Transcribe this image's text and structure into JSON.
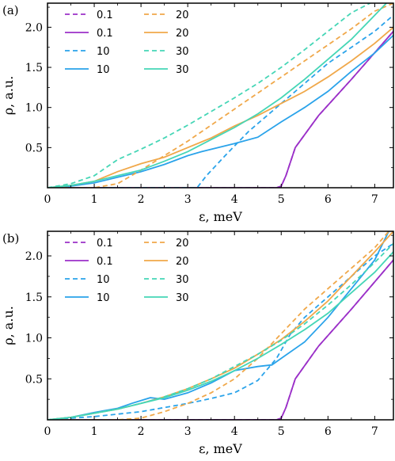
{
  "chart_data": [
    {
      "type": "line",
      "panel_label": "(a)",
      "xlabel": "ε,  meV",
      "ylabel": "ρ, a.u.",
      "xlim": [
        0,
        7.4
      ],
      "ylim": [
        0,
        2.3
      ],
      "xticks": [
        "0",
        "1",
        "2",
        "3",
        "4",
        "5",
        "6",
        "7"
      ],
      "yticks": [
        "0.5",
        "1.0",
        "1.5",
        "2.0"
      ],
      "legend": {
        "position": "top-left",
        "columns": 2
      },
      "series": [
        {
          "name": "0.1",
          "style": "dashed",
          "color": "#9b30c8",
          "x": [
            0,
            4.9,
            5.0,
            5.1,
            5.3,
            5.8,
            6.5,
            7.4
          ],
          "y": [
            0,
            0,
            0.02,
            0.15,
            0.5,
            0.9,
            1.35,
            1.95
          ]
        },
        {
          "name": "0.1",
          "style": "solid",
          "color": "#9b30c8",
          "x": [
            0,
            4.9,
            5.0,
            5.1,
            5.3,
            5.8,
            6.5,
            7.4
          ],
          "y": [
            0,
            0,
            0.02,
            0.15,
            0.5,
            0.9,
            1.35,
            1.95
          ]
        },
        {
          "name": "10",
          "style": "dashed",
          "color": "#2aa3ea",
          "x": [
            0,
            3.2,
            3.4,
            3.8,
            4.3,
            5.0,
            5.5,
            6.0,
            6.5,
            7.0,
            7.4
          ],
          "y": [
            0,
            0,
            0.15,
            0.4,
            0.7,
            1.05,
            1.3,
            1.55,
            1.75,
            1.95,
            2.15
          ]
        },
        {
          "name": "10",
          "style": "solid",
          "color": "#2aa3ea",
          "x": [
            0,
            0.5,
            1,
            1.5,
            2,
            2.5,
            3,
            3.3,
            4,
            4.5,
            5,
            5.5,
            6,
            6.5,
            7,
            7.4
          ],
          "y": [
            0,
            0.02,
            0.06,
            0.13,
            0.2,
            0.29,
            0.4,
            0.45,
            0.55,
            0.63,
            0.82,
            1.0,
            1.2,
            1.45,
            1.68,
            1.9
          ]
        },
        {
          "name": "20",
          "style": "dashed",
          "color": "#f0a84a",
          "x": [
            0,
            1,
            1.5,
            2,
            2.5,
            3,
            3.5,
            4,
            4.5,
            5,
            5.5,
            6,
            6.5,
            7,
            7.4
          ],
          "y": [
            0,
            0,
            0.05,
            0.22,
            0.4,
            0.58,
            0.78,
            0.98,
            1.18,
            1.38,
            1.58,
            1.78,
            1.98,
            2.2,
            2.3
          ]
        },
        {
          "name": "20",
          "style": "solid",
          "color": "#f0a84a",
          "x": [
            0,
            0.5,
            1,
            1.5,
            2,
            2.5,
            3,
            3.5,
            4,
            4.5,
            5,
            5.5,
            6,
            6.5,
            7,
            7.4
          ],
          "y": [
            0,
            0.03,
            0.08,
            0.2,
            0.3,
            0.38,
            0.5,
            0.62,
            0.77,
            0.9,
            1.05,
            1.2,
            1.38,
            1.58,
            1.8,
            2.0
          ]
        },
        {
          "name": "30",
          "style": "dashed",
          "color": "#45d6b6",
          "x": [
            0,
            0.5,
            1,
            1.5,
            2,
            2.5,
            3,
            3.5,
            4,
            4.5,
            5,
            5.5,
            6,
            6.5,
            6.9
          ],
          "y": [
            0,
            0.05,
            0.15,
            0.35,
            0.48,
            0.62,
            0.78,
            0.95,
            1.12,
            1.3,
            1.5,
            1.72,
            1.95,
            2.18,
            2.3
          ]
        },
        {
          "name": "30",
          "style": "solid",
          "color": "#45d6b6",
          "x": [
            0,
            0.5,
            1,
            1.5,
            2,
            2.5,
            3,
            3.5,
            4,
            4.5,
            5,
            5.5,
            6,
            6.5,
            7,
            7.25
          ],
          "y": [
            0,
            0.03,
            0.08,
            0.15,
            0.22,
            0.33,
            0.45,
            0.6,
            0.75,
            0.92,
            1.12,
            1.35,
            1.6,
            1.85,
            2.15,
            2.3
          ]
        }
      ]
    },
    {
      "type": "line",
      "panel_label": "(b)",
      "xlabel": "ε,  meV",
      "ylabel": "ρ, a.u.",
      "xlim": [
        0,
        7.4
      ],
      "ylim": [
        0,
        2.3
      ],
      "xticks": [
        "0",
        "1",
        "2",
        "3",
        "4",
        "5",
        "6",
        "7"
      ],
      "yticks": [
        "0.5",
        "1.0",
        "1.5",
        "2.0"
      ],
      "legend": {
        "position": "top-left",
        "columns": 2
      },
      "series": [
        {
          "name": "0.1",
          "style": "dashed",
          "color": "#9b30c8",
          "x": [
            0,
            4.9,
            5.0,
            5.1,
            5.3,
            5.8,
            6.5,
            7.4
          ],
          "y": [
            0,
            0,
            0.02,
            0.15,
            0.5,
            0.9,
            1.35,
            1.95
          ]
        },
        {
          "name": "0.1",
          "style": "solid",
          "color": "#9b30c8",
          "x": [
            0,
            4.9,
            5.0,
            5.1,
            5.3,
            5.8,
            6.5,
            7.4
          ],
          "y": [
            0,
            0,
            0.02,
            0.15,
            0.5,
            0.9,
            1.35,
            1.95
          ]
        },
        {
          "name": "10",
          "style": "dashed",
          "color": "#2aa3ea",
          "x": [
            0,
            1,
            2,
            3,
            3.5,
            4,
            4.5,
            4.9,
            5.2,
            5.5,
            6,
            6.5,
            7,
            7.4
          ],
          "y": [
            0,
            0.04,
            0.1,
            0.2,
            0.26,
            0.33,
            0.48,
            0.75,
            1.05,
            1.25,
            1.5,
            1.75,
            2.0,
            2.15
          ]
        },
        {
          "name": "10",
          "style": "solid",
          "color": "#2aa3ea",
          "x": [
            0,
            0.5,
            1,
            1.5,
            1.8,
            2.2,
            2.5,
            3,
            3.5,
            4,
            4.5,
            4.8,
            5,
            5.5,
            6,
            6.5,
            7,
            7.3
          ],
          "y": [
            0,
            0.03,
            0.09,
            0.14,
            0.2,
            0.27,
            0.25,
            0.33,
            0.45,
            0.6,
            0.65,
            0.67,
            0.75,
            0.95,
            1.25,
            1.6,
            1.95,
            2.3
          ]
        },
        {
          "name": "20",
          "style": "dashed",
          "color": "#f0a84a",
          "x": [
            0,
            1.5,
            2,
            2.5,
            3,
            3.5,
            4,
            4.5,
            5,
            5.5,
            6,
            6.5,
            7,
            7.3
          ],
          "y": [
            0,
            0,
            0.02,
            0.1,
            0.2,
            0.33,
            0.5,
            0.75,
            1.05,
            1.35,
            1.6,
            1.85,
            2.1,
            2.3
          ]
        },
        {
          "name": "20",
          "style": "solid",
          "color": "#f0a84a",
          "x": [
            0,
            0.5,
            1,
            1.5,
            2,
            2.5,
            3,
            3.5,
            4,
            4.5,
            5,
            5.5,
            6,
            6.5,
            7,
            7.4
          ],
          "y": [
            0,
            0.03,
            0.08,
            0.13,
            0.2,
            0.28,
            0.38,
            0.5,
            0.63,
            0.8,
            0.98,
            1.2,
            1.45,
            1.75,
            2.05,
            2.3
          ]
        },
        {
          "name": "30",
          "style": "dashed",
          "color": "#45d6b6",
          "x": [
            0,
            0.5,
            1,
            1.5,
            2,
            2.5,
            3,
            3.5,
            4,
            4.5,
            5,
            5.5,
            6,
            6.5,
            7,
            7.4
          ],
          "y": [
            0,
            0.03,
            0.08,
            0.13,
            0.2,
            0.28,
            0.38,
            0.5,
            0.65,
            0.8,
            0.97,
            1.17,
            1.4,
            1.65,
            1.92,
            2.15
          ]
        },
        {
          "name": "30",
          "style": "solid",
          "color": "#45d6b6",
          "x": [
            0,
            0.5,
            1,
            1.5,
            2,
            2.5,
            3,
            3.5,
            4,
            4.5,
            5,
            5.5,
            6,
            6.5,
            7,
            7.4
          ],
          "y": [
            0,
            0.03,
            0.08,
            0.13,
            0.2,
            0.27,
            0.36,
            0.47,
            0.6,
            0.75,
            0.92,
            1.1,
            1.3,
            1.55,
            1.8,
            2.05
          ]
        }
      ]
    }
  ]
}
